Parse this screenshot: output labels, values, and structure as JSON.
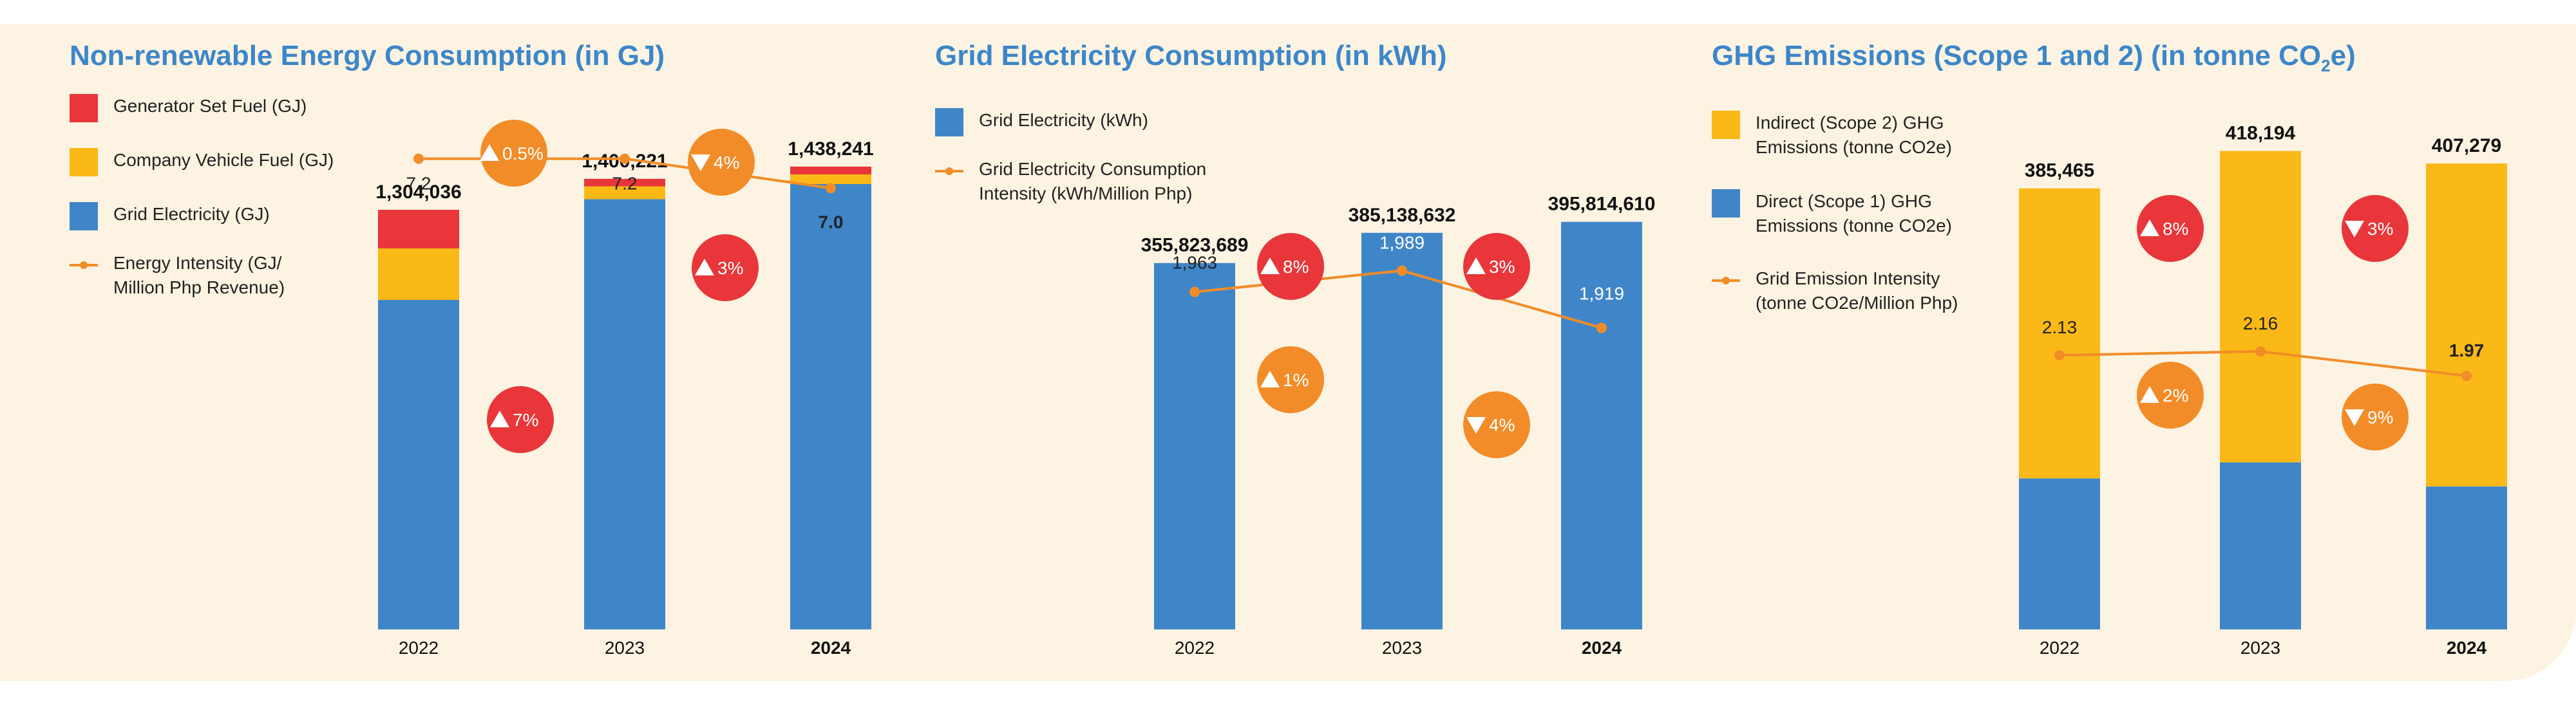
{
  "colors": {
    "red": "#e8363a",
    "yellow": "#fbb917",
    "blue": "#3f86c8",
    "orange": "#f28c28",
    "title": "#3c86c9",
    "background": "#fdf3e2"
  },
  "chart_data": [
    {
      "type": "bar",
      "stacked": true,
      "title": "Non-renewable Energy Consumption (in GJ)",
      "categories": [
        "2022",
        "2023",
        "2024"
      ],
      "bold_category": "2024",
      "series": [
        {
          "name": "Grid Electricity (GJ)",
          "color_key": "blue",
          "values": [
            1024000,
            1337000,
            1384000
          ]
        },
        {
          "name": "Company Vehicle Fuel (GJ)",
          "color_key": "yellow",
          "values": [
            160000,
            40000,
            30000
          ]
        },
        {
          "name": "Generator Set Fuel (GJ)",
          "color_key": "red",
          "values": [
            120036,
            23221,
            24241
          ]
        }
      ],
      "totals": [
        1304036,
        1400221,
        1438241
      ],
      "total_labels": [
        "1,304,036",
        "1,400,221",
        "1,438,241"
      ],
      "ylim": [
        0,
        1600000
      ],
      "line": {
        "name": "Energy Intensity (GJ/ Million Php Revenue)",
        "values": [
          7.2,
          7.2,
          7.0
        ],
        "labels": [
          "7.2",
          "7.2",
          "7.0"
        ],
        "ylim": [
          4.0,
          7.5
        ]
      },
      "change_badges": [
        {
          "text": "7%",
          "direction": "up",
          "color_key": "red",
          "between": 0,
          "series": "bar"
        },
        {
          "text": "3%",
          "direction": "up",
          "color_key": "red",
          "between": 1,
          "series": "bar"
        },
        {
          "text": "0.5%",
          "direction": "up",
          "color_key": "orange",
          "between": 0,
          "series": "line"
        },
        {
          "text": "4%",
          "direction": "down",
          "color_key": "orange",
          "between": 1,
          "series": "line"
        }
      ],
      "legend": [
        {
          "label": "Generator Set Fuel (GJ)",
          "kind": "swatch",
          "color_key": "red"
        },
        {
          "label": "Company Vehicle Fuel (GJ)",
          "kind": "swatch",
          "color_key": "yellow"
        },
        {
          "label": "Grid Electricity (GJ)",
          "kind": "swatch",
          "color_key": "blue"
        },
        {
          "label": "Energy Intensity (GJ/\nMillion Php Revenue)",
          "kind": "line",
          "color_key": "orange"
        }
      ]
    },
    {
      "type": "bar",
      "stacked": false,
      "title": "Grid Electricity Consumption (in kWh)",
      "categories": [
        "2022",
        "2023",
        "2024"
      ],
      "bold_category": "2024",
      "series": [
        {
          "name": "Grid Electricity (kWh)",
          "color_key": "blue",
          "values": [
            355823689,
            385138632,
            395814610
          ]
        }
      ],
      "totals": [
        355823689,
        385138632,
        395814610
      ],
      "total_labels": [
        "355,823,689",
        "385,138,632",
        "395,814,610"
      ],
      "ylim": [
        0,
        500000000
      ],
      "line": {
        "name": "Grid Electricity Consumption Intensity (kWh/Million Php)",
        "values": [
          1963,
          1989,
          1919
        ],
        "labels": [
          "1,963",
          "1,989",
          "1,919"
        ],
        "ylim": [
          1550,
          2180
        ]
      },
      "change_badges": [
        {
          "text": "8%",
          "direction": "up",
          "color_key": "red",
          "between": 0,
          "series": "bar"
        },
        {
          "text": "3%",
          "direction": "up",
          "color_key": "red",
          "between": 1,
          "series": "bar"
        },
        {
          "text": "1%",
          "direction": "up",
          "color_key": "orange",
          "between": 0,
          "series": "line"
        },
        {
          "text": "4%",
          "direction": "down",
          "color_key": "orange",
          "between": 1,
          "series": "line"
        }
      ],
      "legend": [
        {
          "label": "Grid Electricity (kWh)",
          "kind": "swatch",
          "color_key": "blue"
        },
        {
          "label": "Grid Electricity Consumption\nIntensity (kWh/Million Php)",
          "kind": "line",
          "color_key": "orange"
        }
      ]
    },
    {
      "type": "bar",
      "stacked": true,
      "title_main": "GHG Emissions (Scope 1 and 2) (in tonne CO",
      "title_sub": "2",
      "title_end": "e)",
      "categories": [
        "2022",
        "2023",
        "2024"
      ],
      "bold_category": "2024",
      "series": [
        {
          "name": "Direct (Scope 1) GHG Emissions (tonne CO2e)",
          "color_key": "blue",
          "values": [
            132000,
            146000,
            125000
          ]
        },
        {
          "name": "Indirect (Scope 2) GHG Emissions (tonne CO2e)",
          "color_key": "yellow",
          "values": [
            253465,
            272194,
            282279
          ]
        }
      ],
      "totals": [
        385465,
        418194,
        407279
      ],
      "total_labels": [
        "385,465",
        "418,194",
        "407,279"
      ],
      "ylim": [
        0,
        450000
      ],
      "line": {
        "name": "Grid Emission Intensity (tonne CO2e/Million Php)",
        "values": [
          2.13,
          2.16,
          1.97
        ],
        "labels": [
          "2.13",
          "2.16",
          "1.97"
        ],
        "ylim": [
          0,
          4.0
        ]
      },
      "change_badges": [
        {
          "text": "8%",
          "direction": "up",
          "color_key": "red",
          "between": 0,
          "series": "bar"
        },
        {
          "text": "3%",
          "direction": "down",
          "color_key": "red",
          "between": 1,
          "series": "bar"
        },
        {
          "text": "2%",
          "direction": "up",
          "color_key": "orange",
          "between": 0,
          "series": "line"
        },
        {
          "text": "9%",
          "direction": "down",
          "color_key": "orange",
          "between": 1,
          "series": "line"
        }
      ],
      "legend": [
        {
          "label": "Indirect (Scope 2) GHG\nEmissions (tonne CO2e)",
          "kind": "swatch",
          "color_key": "yellow"
        },
        {
          "label": "Direct (Scope 1) GHG\nEmissions (tonne CO2e)",
          "kind": "swatch",
          "color_key": "blue"
        },
        {
          "label": "Grid Emission Intensity\n(tonne CO2e/Million Php)",
          "kind": "line",
          "color_key": "orange"
        }
      ]
    }
  ]
}
